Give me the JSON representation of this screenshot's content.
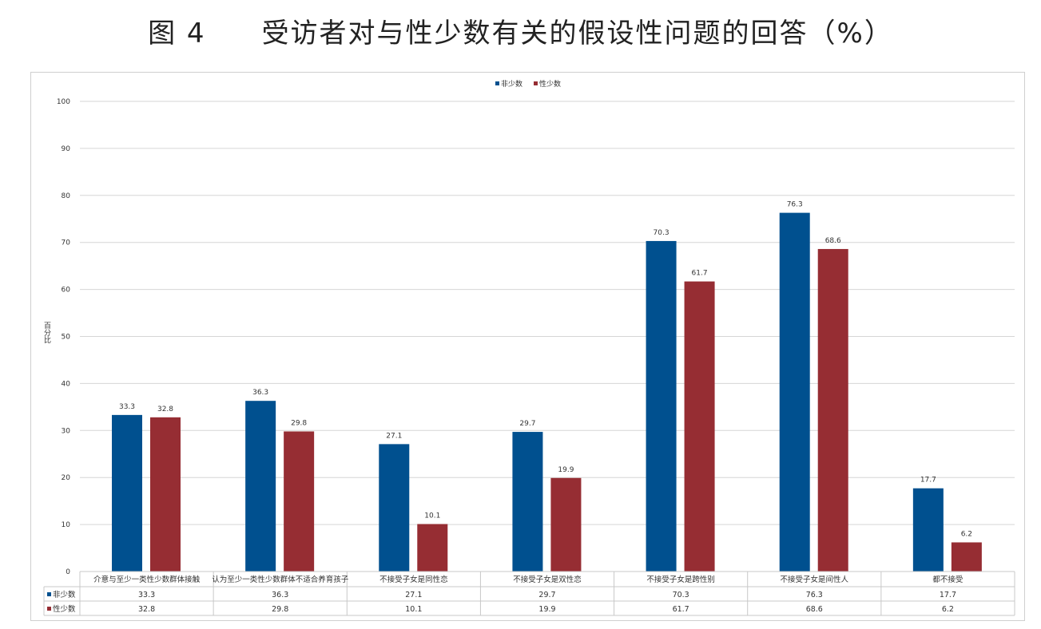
{
  "title": {
    "figure_label": "图 4",
    "text": "受访者对与性少数有关的假设性问题的回答（%）"
  },
  "chart_data": {
    "type": "bar",
    "title": "受访者对与性少数有关的假设性问题的回答（%）",
    "ylabel": "百分比",
    "xlabel": "",
    "ylim": [
      0,
      100
    ],
    "yticks": [
      0,
      10,
      20,
      30,
      40,
      50,
      60,
      70,
      80,
      90,
      100
    ],
    "grid": true,
    "legend": "top-center",
    "data_table": true,
    "categories": [
      "介意与至少一类性少数群体接触",
      "认为至少一类性少数群体不适合养育孩子",
      "不接受子女是同性恋",
      "不接受子女是双性恋",
      "不接受子女是跨性别",
      "不接受子女是间性人",
      "都不接受"
    ],
    "series": [
      {
        "name": "非少数",
        "color": "#00508f",
        "values": [
          33.3,
          36.3,
          27.1,
          29.7,
          70.3,
          76.3,
          17.7
        ]
      },
      {
        "name": "性少数",
        "color": "#962d33",
        "values": [
          32.8,
          29.8,
          10.1,
          19.9,
          61.7,
          68.6,
          6.2
        ]
      }
    ]
  }
}
